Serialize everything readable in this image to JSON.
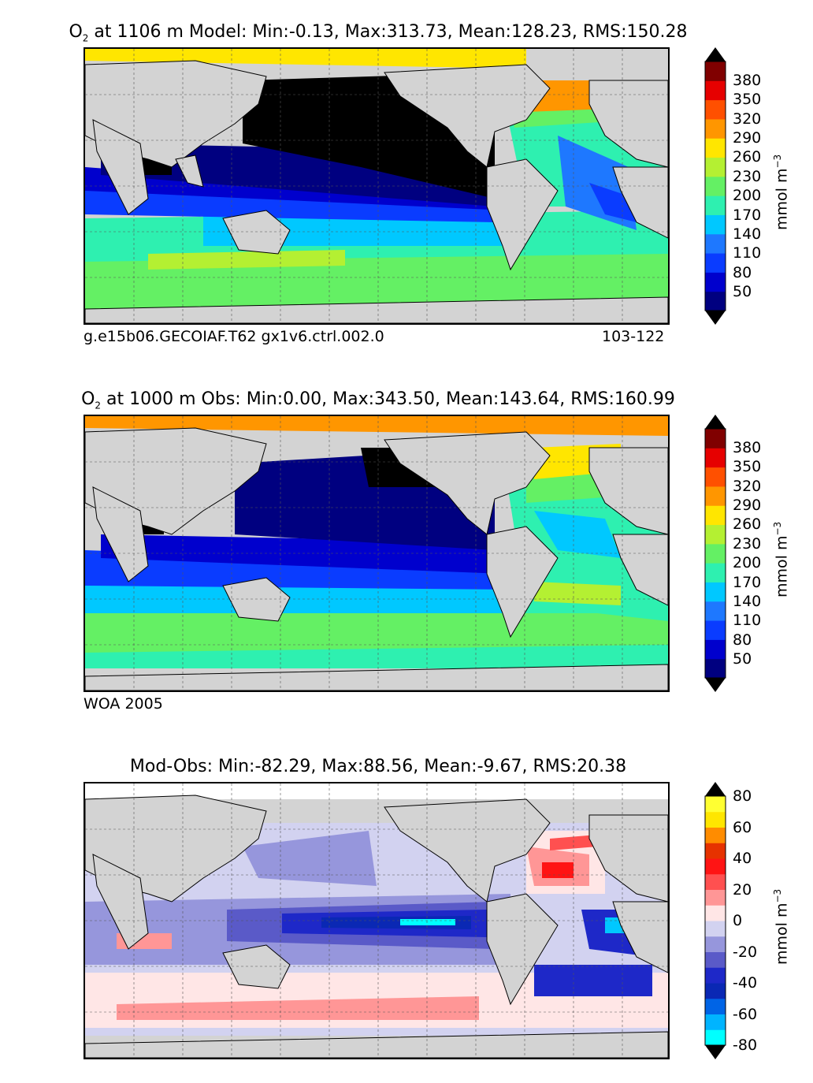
{
  "panels": [
    {
      "title_prefix": "O",
      "title_sub": "2",
      "title_rest": " at 1106 m Model: Min:-0.13, Max:313.73, Mean:128.23, RMS:150.28",
      "footer_left": "g.e15b06.GECOIAF.T62 gx1v6.ctrl.002.0",
      "footer_right": "103-122",
      "colorbar": {
        "ticks": [
          "380",
          "350",
          "320",
          "290",
          "260",
          "230",
          "200",
          "170",
          "140",
          "110",
          "80",
          "50"
        ],
        "unit": "mmol m",
        "unit_sup": "−3",
        "colors": [
          "#000080",
          "#0000cd",
          "#0a3cff",
          "#1e78ff",
          "#00c8ff",
          "#2ef0b0",
          "#64f064",
          "#b4f032",
          "#ffe600",
          "#ff9600",
          "#ff5000",
          "#e60000",
          "#800000"
        ]
      }
    },
    {
      "title_prefix": "O",
      "title_sub": "2",
      "title_rest": " at 1000 m Obs: Min:0.00, Max:343.50, Mean:143.64, RMS:160.99",
      "footer_left": "WOA 2005",
      "footer_right": "",
      "colorbar": {
        "ticks": [
          "380",
          "350",
          "320",
          "290",
          "260",
          "230",
          "200",
          "170",
          "140",
          "110",
          "80",
          "50"
        ],
        "unit": "mmol m",
        "unit_sup": "−3",
        "colors": [
          "#000080",
          "#0000cd",
          "#0a3cff",
          "#1e78ff",
          "#00c8ff",
          "#2ef0b0",
          "#64f064",
          "#b4f032",
          "#ffe600",
          "#ff9600",
          "#ff5000",
          "#e60000",
          "#800000"
        ]
      }
    },
    {
      "title_prefix": "",
      "title_sub": "",
      "title_rest": "Mod-Obs: Min:-82.29, Max:88.56, Mean:-9.67, RMS:20.38",
      "footer_left": "",
      "footer_right": "",
      "colorbar": {
        "ticks": [
          "80",
          "60",
          "40",
          "20",
          "0",
          "-20",
          "-40",
          "-60",
          "-80"
        ],
        "unit": "mmol m",
        "unit_sup": "−3",
        "colors": [
          "#00ffff",
          "#00b4ff",
          "#0064e6",
          "#0a28b4",
          "#1e28c8",
          "#5a5ac8",
          "#9696dc",
          "#d2d2f0",
          "#ffe6e6",
          "#ff9696",
          "#ff5050",
          "#ff1414",
          "#e63200",
          "#ff8c00",
          "#ffe600",
          "#ffff32"
        ]
      }
    }
  ]
}
